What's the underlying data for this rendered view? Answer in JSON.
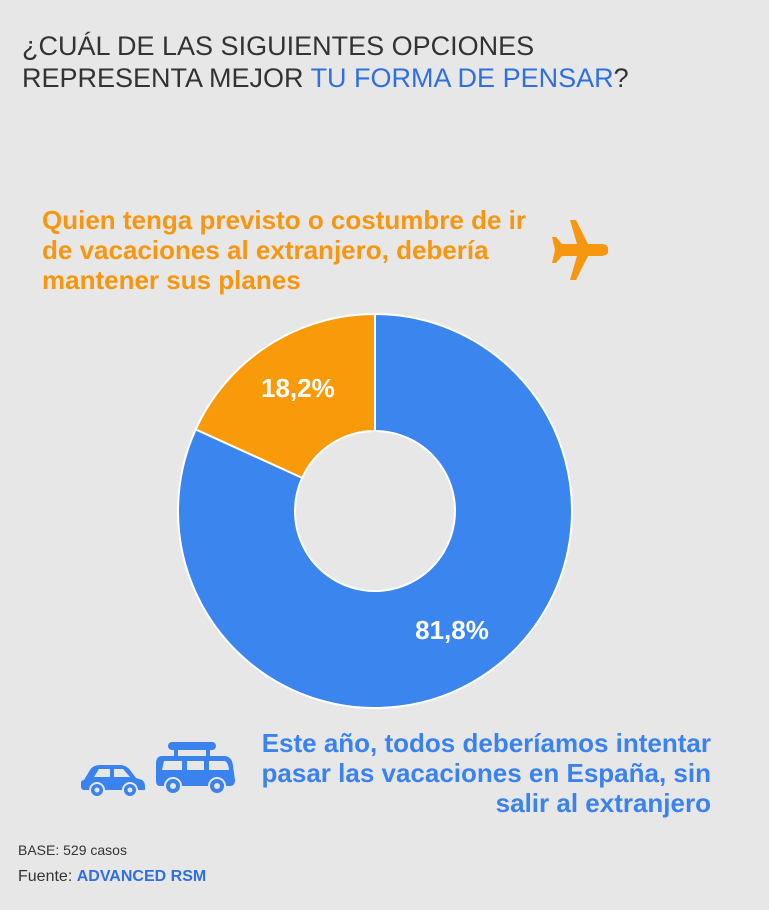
{
  "title": {
    "line1": "¿CUÁL DE LAS SIGUIENTES OPCIONES",
    "line2_prefix": "REPRESENTA MEJOR ",
    "line2_accent": "TU FORMA DE PENSAR",
    "line2_suffix": "?"
  },
  "options": {
    "abroad": "Quien tenga previsto o costumbre de ir de vacaciones al extranjero, debería mantener sus planes",
    "spain": "Este año, todos deberíamos intentar pasar las vacaciones en España, sin salir al extranjero"
  },
  "icons": {
    "plane": "plane-icon",
    "car": "car-icon",
    "van": "van-icon"
  },
  "chart_data": {
    "type": "pie",
    "donut": true,
    "slices": [
      {
        "label": "Este año, todos deberíamos intentar pasar las vacaciones en España, sin salir al extranjero",
        "value": 81.8,
        "display": "81,8%",
        "color": "#3b86ee"
      },
      {
        "label": "Quien tenga previsto o costumbre de ir de vacaciones al extranjero, debería mantener sus planes",
        "value": 18.2,
        "display": "18,2%",
        "color": "#f99a0b"
      }
    ]
  },
  "footer": {
    "base": "BASE: 529 casos",
    "source_prefix": "Fuente: ",
    "source_brand": "ADVANCED RSM"
  },
  "colors": {
    "accent": "#2f6fe0",
    "orange": "#f7960f",
    "blue": "#3a82ee",
    "background": "#e7e7e7"
  }
}
